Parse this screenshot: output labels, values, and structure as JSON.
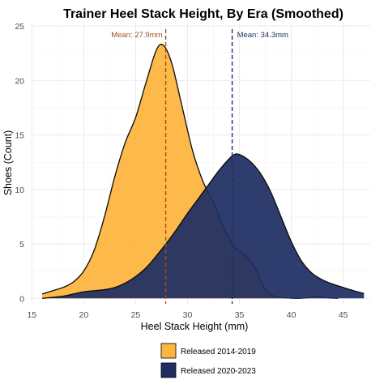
{
  "chart_data": {
    "type": "area",
    "title": "Trainer Heel Stack Height, By Era (Smoothed)",
    "xlabel": "Heel Stack Height (mm)",
    "ylabel": "Shoes (Count)",
    "xlim": [
      14.9,
      47.6
    ],
    "ylim": [
      -0.5,
      25.3
    ],
    "x_ticks": [
      15,
      20,
      25,
      30,
      35,
      40,
      45
    ],
    "y_ticks": [
      0,
      5,
      10,
      15,
      20,
      25
    ],
    "grid": true,
    "legend_position": "bottom",
    "series": [
      {
        "name": "Released 2014-2019",
        "color": "#FDB53F",
        "mean": 27.9,
        "mean_label": "Mean: 27.9mm",
        "mean_color": "#A0521C",
        "points": [
          [
            16,
            0.4
          ],
          [
            17,
            0.7
          ],
          [
            18,
            1.0
          ],
          [
            19,
            1.5
          ],
          [
            20,
            2.5
          ],
          [
            21,
            4.4
          ],
          [
            22,
            7.5
          ],
          [
            23,
            11.2
          ],
          [
            24,
            14.3
          ],
          [
            25,
            16.6
          ],
          [
            26,
            19.8
          ],
          [
            27,
            22.8
          ],
          [
            27.7,
            23.2
          ],
          [
            28.5,
            21.5
          ],
          [
            29.5,
            17.5
          ],
          [
            30.5,
            13.5
          ],
          [
            31.5,
            10.7
          ],
          [
            32.5,
            8.8
          ],
          [
            33.5,
            6.5
          ],
          [
            34.5,
            4.7
          ],
          [
            35.5,
            4.0
          ],
          [
            36.5,
            2.8
          ],
          [
            37.5,
            0.8
          ],
          [
            38.5,
            0.15
          ],
          [
            39.5,
            0.05
          ],
          [
            40.5,
            0.0
          ],
          [
            41.5,
            0.05
          ],
          [
            42.5,
            0.15
          ],
          [
            43.5,
            0.05
          ],
          [
            44.5,
            0.0
          ]
        ]
      },
      {
        "name": "Released 2020-2023",
        "color": "#1E2E62",
        "mean": 34.3,
        "mean_label": "Mean: 34.3mm",
        "mean_color": "#1E2E62",
        "points": [
          [
            16,
            0.0
          ],
          [
            18,
            0.2
          ],
          [
            19,
            0.4
          ],
          [
            20,
            0.6
          ],
          [
            21,
            0.7
          ],
          [
            22,
            0.8
          ],
          [
            23,
            1.0
          ],
          [
            24,
            1.4
          ],
          [
            25,
            2.0
          ],
          [
            26,
            2.8
          ],
          [
            27,
            3.9
          ],
          [
            28,
            5.1
          ],
          [
            29,
            6.4
          ],
          [
            30,
            7.8
          ],
          [
            31,
            9.1
          ],
          [
            32,
            10.4
          ],
          [
            33,
            11.7
          ],
          [
            34,
            12.8
          ],
          [
            34.5,
            13.2
          ],
          [
            35,
            13.2
          ],
          [
            36,
            12.6
          ],
          [
            37,
            11.5
          ],
          [
            38,
            9.8
          ],
          [
            39,
            7.5
          ],
          [
            40,
            5.2
          ],
          [
            41,
            3.4
          ],
          [
            42,
            2.3
          ],
          [
            43,
            1.7
          ],
          [
            44,
            1.3
          ],
          [
            45,
            1.0
          ],
          [
            46,
            0.7
          ],
          [
            47,
            0.45
          ]
        ]
      }
    ]
  }
}
